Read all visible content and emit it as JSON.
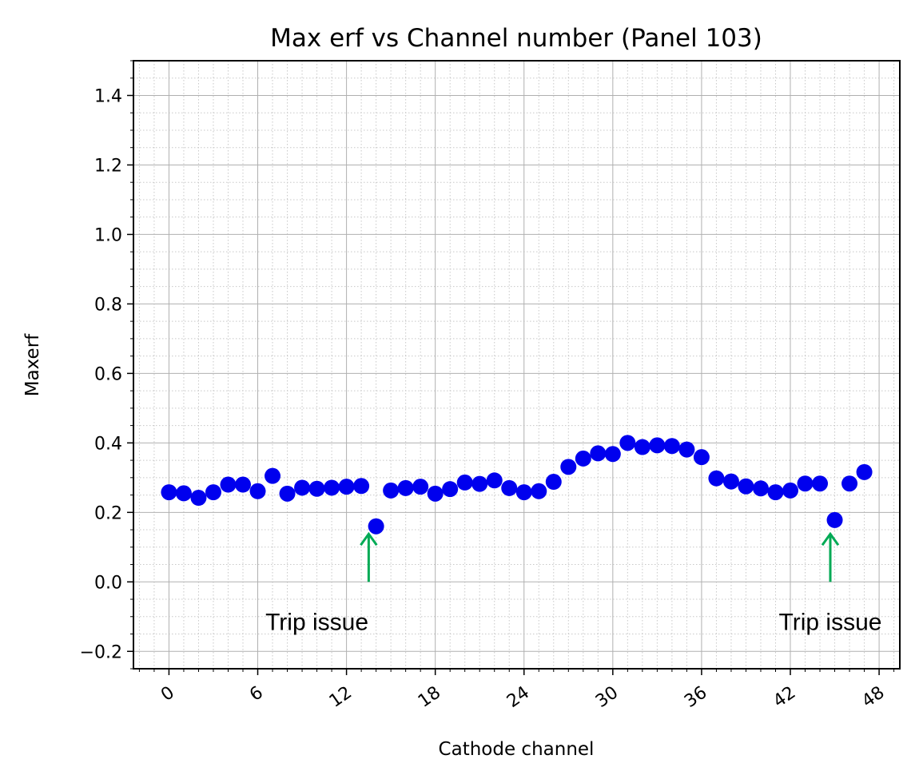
{
  "chart_data": {
    "type": "scatter",
    "title": "Max erf vs Channel number (Panel 103)",
    "xlabel": "Cathode channel",
    "ylabel": "Maxerf",
    "xlim": [
      -2.4,
      49.4
    ],
    "ylim": [
      -0.25,
      1.5
    ],
    "x_ticks": [
      0,
      6,
      12,
      18,
      24,
      30,
      36,
      42,
      48
    ],
    "y_ticks": [
      -0.2,
      0.0,
      0.2,
      0.4,
      0.6,
      0.8,
      1.0,
      1.2,
      1.4
    ],
    "y_tick_labels": [
      "−0.2",
      "0.0",
      "0.2",
      "0.4",
      "0.6",
      "0.8",
      "1.0",
      "1.2",
      "1.4"
    ],
    "x_tick_rotation": 35,
    "grid": true,
    "minor_grid": true,
    "marker_color": "#0000ee",
    "x": [
      0,
      1,
      2,
      3,
      4,
      5,
      6,
      7,
      8,
      9,
      10,
      11,
      12,
      13,
      14,
      15,
      16,
      17,
      18,
      19,
      20,
      21,
      22,
      23,
      24,
      25,
      26,
      27,
      28,
      29,
      30,
      31,
      32,
      33,
      34,
      35,
      36,
      37,
      38,
      39,
      40,
      41,
      42,
      43,
      44,
      45,
      46,
      47
    ],
    "y": [
      0.258,
      0.255,
      0.242,
      0.258,
      0.28,
      0.28,
      0.261,
      0.305,
      0.254,
      0.271,
      0.268,
      0.271,
      0.274,
      0.276,
      0.16,
      0.263,
      0.27,
      0.274,
      0.254,
      0.267,
      0.286,
      0.282,
      0.292,
      0.27,
      0.258,
      0.261,
      0.288,
      0.331,
      0.355,
      0.37,
      0.368,
      0.4,
      0.388,
      0.393,
      0.391,
      0.381,
      0.359,
      0.298,
      0.289,
      0.275,
      0.269,
      0.258,
      0.263,
      0.283,
      0.283,
      0.178,
      0.283,
      0.316
    ],
    "annotations": [
      {
        "text": "Trip issue",
        "x": 13.5,
        "y": 0.0,
        "text_x": 10.0,
        "text_y": -0.115
      },
      {
        "text": "Trip issue",
        "x": 44.7,
        "y": 0.0,
        "text_x": 44.7,
        "text_y": -0.115
      }
    ],
    "annotation_color": "#00aa55"
  }
}
